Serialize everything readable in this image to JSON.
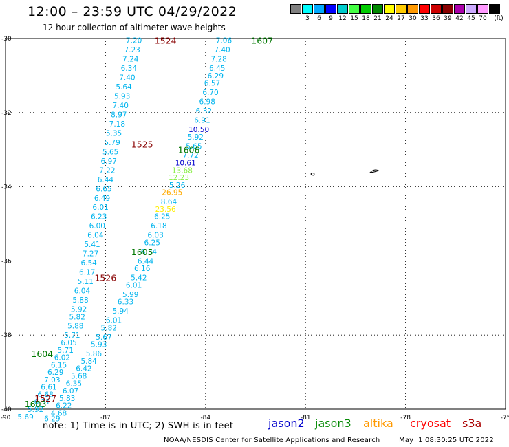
{
  "header": {
    "title": "12:00 – 23:59 UTC 04/29/2022",
    "subtitle": "12 hour collection of altimeter wave heights"
  },
  "colorbar": {
    "unit": "(ft)",
    "swatches": [
      {
        "color": "#808080",
        "label": ""
      },
      {
        "color": "#00ffff",
        "label": "3"
      },
      {
        "color": "#00aaff",
        "label": "6"
      },
      {
        "color": "#0000ff",
        "label": "9"
      },
      {
        "color": "#00cccc",
        "label": "12"
      },
      {
        "color": "#44ff44",
        "label": "15"
      },
      {
        "color": "#00cc00",
        "label": "18"
      },
      {
        "color": "#008800",
        "label": "21"
      },
      {
        "color": "#ffff00",
        "label": "24"
      },
      {
        "color": "#ffcc00",
        "label": "27"
      },
      {
        "color": "#ff9900",
        "label": "30"
      },
      {
        "color": "#ff0000",
        "label": "33"
      },
      {
        "color": "#cc0000",
        "label": "36"
      },
      {
        "color": "#880000",
        "label": "39"
      },
      {
        "color": "#aa00aa",
        "label": "42"
      },
      {
        "color": "#ccaaff",
        "label": "45"
      },
      {
        "color": "#ff99ff",
        "label": "70"
      },
      {
        "color": "#000000",
        "label": ""
      }
    ]
  },
  "map": {
    "lon_ticks": [
      "-90",
      "-87",
      "-84",
      "-81",
      "-78",
      "-75"
    ],
    "lat_ticks": [
      "-30",
      "-32",
      "-34",
      "-36",
      "-38",
      "-40"
    ],
    "lon_range": [
      -90,
      -75
    ],
    "lat_range": [
      -30,
      -40
    ],
    "colors": {
      "cyan": "#00b4ee",
      "blue": "#0000cc",
      "yellow": "#ffee00",
      "orange": "#ffaa00",
      "lime": "#88ee44",
      "green": "#007700",
      "darkred": "#880000"
    },
    "time_labels": [
      {
        "text": "1524",
        "lon": -85.2,
        "lat": -30.05,
        "color": "darkred"
      },
      {
        "text": "1607",
        "lon": -82.3,
        "lat": -30.05,
        "color": "green"
      },
      {
        "text": "1525",
        "lon": -85.9,
        "lat": -32.85,
        "color": "darkred"
      },
      {
        "text": "1606",
        "lon": -84.5,
        "lat": -33.0,
        "color": "green"
      },
      {
        "text": "1605",
        "lon": -85.9,
        "lat": -35.75,
        "color": "green"
      },
      {
        "text": "1526",
        "lon": -87.0,
        "lat": -36.45,
        "color": "darkred"
      },
      {
        "text": "1604",
        "lon": -88.9,
        "lat": -38.5,
        "color": "green"
      },
      {
        "text": "1527",
        "lon": -88.8,
        "lat": -39.7,
        "color": "darkred"
      },
      {
        "text": "1603",
        "lon": -89.1,
        "lat": -39.85,
        "color": "green"
      }
    ],
    "track_west": [
      {
        "text": "7.20",
        "lon": -86.15,
        "lat": -30.05
      },
      {
        "text": "7.23",
        "lon": -86.2,
        "lat": -30.3
      },
      {
        "text": "7.24",
        "lon": -86.25,
        "lat": -30.55
      },
      {
        "text": "6.34",
        "lon": -86.3,
        "lat": -30.8
      },
      {
        "text": "7.40",
        "lon": -86.35,
        "lat": -31.05
      },
      {
        "text": "5.64",
        "lon": -86.45,
        "lat": -31.3
      },
      {
        "text": "5.93",
        "lon": -86.5,
        "lat": -31.55
      },
      {
        "text": "7.40",
        "lon": -86.55,
        "lat": -31.8
      },
      {
        "text": "8.97",
        "lon": -86.6,
        "lat": -32.05
      },
      {
        "text": "7.18",
        "lon": -86.65,
        "lat": -32.3
      },
      {
        "text": "5.35",
        "lon": -86.75,
        "lat": -32.55
      },
      {
        "text": "5.79",
        "lon": -86.8,
        "lat": -32.8
      },
      {
        "text": "5.65",
        "lon": -86.85,
        "lat": -33.05
      },
      {
        "text": "6.97",
        "lon": -86.9,
        "lat": -33.3
      },
      {
        "text": "7.22",
        "lon": -86.95,
        "lat": -33.55
      },
      {
        "text": "6.44",
        "lon": -87.0,
        "lat": -33.8
      },
      {
        "text": "6.65",
        "lon": -87.05,
        "lat": -34.05
      },
      {
        "text": "6.49",
        "lon": -87.1,
        "lat": -34.3
      },
      {
        "text": "6.01",
        "lon": -87.15,
        "lat": -34.55
      },
      {
        "text": "6.23",
        "lon": -87.2,
        "lat": -34.8
      },
      {
        "text": "6.00",
        "lon": -87.25,
        "lat": -35.05
      },
      {
        "text": "6.04",
        "lon": -87.3,
        "lat": -35.3
      },
      {
        "text": "5.41",
        "lon": -87.4,
        "lat": -35.55
      },
      {
        "text": "7.27",
        "lon": -87.45,
        "lat": -35.8
      },
      {
        "text": "6.54",
        "lon": -87.5,
        "lat": -36.05
      },
      {
        "text": "6.17",
        "lon": -87.55,
        "lat": -36.3
      },
      {
        "text": "5.11",
        "lon": -87.6,
        "lat": -36.55
      },
      {
        "text": "6.04",
        "lon": -87.7,
        "lat": -36.8
      },
      {
        "text": "5.88",
        "lon": -87.75,
        "lat": -37.05
      },
      {
        "text": "5.92",
        "lon": -87.8,
        "lat": -37.3
      },
      {
        "text": "5.82",
        "lon": -87.85,
        "lat": -37.5
      },
      {
        "text": "5.88",
        "lon": -87.9,
        "lat": -37.75
      },
      {
        "text": "5.71",
        "lon": -88.0,
        "lat": -38.0
      },
      {
        "text": "6.05",
        "lon": -88.1,
        "lat": -38.2
      },
      {
        "text": "5.71",
        "lon": -88.2,
        "lat": -38.4
      },
      {
        "text": "6.02",
        "lon": -88.3,
        "lat": -38.6
      },
      {
        "text": "6.15",
        "lon": -88.4,
        "lat": -38.8
      },
      {
        "text": "6.29",
        "lon": -88.5,
        "lat": -39.0
      },
      {
        "text": "7.03",
        "lon": -88.6,
        "lat": -39.2
      },
      {
        "text": "6.61",
        "lon": -88.7,
        "lat": -39.4
      },
      {
        "text": "6.68",
        "lon": -88.8,
        "lat": -39.6
      },
      {
        "text": "6.31",
        "lon": -88.9,
        "lat": -39.8
      },
      {
        "text": "5.92",
        "lon": -89.1,
        "lat": -40.0
      },
      {
        "text": "5.69",
        "lon": -89.4,
        "lat": -40.2
      }
    ],
    "track_east": [
      {
        "text": "7.06",
        "lon": -83.45,
        "lat": -30.05,
        "color": "cyan"
      },
      {
        "text": "7.40",
        "lon": -83.5,
        "lat": -30.3,
        "color": "cyan"
      },
      {
        "text": "7.28",
        "lon": -83.6,
        "lat": -30.55,
        "color": "cyan"
      },
      {
        "text": "6.45",
        "lon": -83.65,
        "lat": -30.8,
        "color": "cyan"
      },
      {
        "text": "6.29",
        "lon": -83.7,
        "lat": -31.0,
        "color": "cyan"
      },
      {
        "text": "6.57",
        "lon": -83.8,
        "lat": -31.2,
        "color": "cyan"
      },
      {
        "text": "6.70",
        "lon": -83.85,
        "lat": -31.45,
        "color": "cyan"
      },
      {
        "text": "6.98",
        "lon": -83.95,
        "lat": -31.7,
        "color": "cyan"
      },
      {
        "text": "6.32",
        "lon": -84.05,
        "lat": -31.95,
        "color": "cyan"
      },
      {
        "text": "6.91",
        "lon": -84.1,
        "lat": -32.2,
        "color": "cyan"
      },
      {
        "text": "10.50",
        "lon": -84.2,
        "lat": -32.45,
        "color": "blue"
      },
      {
        "text": "5.92",
        "lon": -84.3,
        "lat": -32.65,
        "color": "cyan"
      },
      {
        "text": "5.65",
        "lon": -84.35,
        "lat": -32.9,
        "color": "cyan"
      },
      {
        "text": "7.72",
        "lon": -84.45,
        "lat": -33.15,
        "color": "cyan"
      },
      {
        "text": "10.61",
        "lon": -84.6,
        "lat": -33.35,
        "color": "blue"
      },
      {
        "text": "13.68",
        "lon": -84.7,
        "lat": -33.55,
        "color": "lime"
      },
      {
        "text": "12.23",
        "lon": -84.8,
        "lat": -33.75,
        "color": "lime"
      },
      {
        "text": "5.26",
        "lon": -84.85,
        "lat": -33.95,
        "color": "cyan"
      },
      {
        "text": "26.95",
        "lon": -85.0,
        "lat": -34.15,
        "color": "orange"
      },
      {
        "text": "8.64",
        "lon": -85.1,
        "lat": -34.4,
        "color": "cyan"
      },
      {
        "text": "23.56",
        "lon": -85.2,
        "lat": -34.6,
        "color": "yellow"
      },
      {
        "text": "6.25",
        "lon": -85.3,
        "lat": -34.8,
        "color": "cyan"
      },
      {
        "text": "6.18",
        "lon": -85.4,
        "lat": -35.05,
        "color": "cyan"
      },
      {
        "text": "6.03",
        "lon": -85.5,
        "lat": -35.3,
        "color": "cyan"
      },
      {
        "text": "6.25",
        "lon": -85.6,
        "lat": -35.5,
        "color": "cyan"
      },
      {
        "text": "6.34",
        "lon": -85.7,
        "lat": -35.75,
        "color": "cyan"
      },
      {
        "text": "6.44",
        "lon": -85.8,
        "lat": -36.0,
        "color": "cyan"
      },
      {
        "text": "6.16",
        "lon": -85.9,
        "lat": -36.2,
        "color": "cyan"
      },
      {
        "text": "5.42",
        "lon": -86.0,
        "lat": -36.45,
        "color": "cyan"
      },
      {
        "text": "6.01",
        "lon": -86.15,
        "lat": -36.65,
        "color": "cyan"
      },
      {
        "text": "5.99",
        "lon": -86.25,
        "lat": -36.9,
        "color": "cyan"
      },
      {
        "text": "6.33",
        "lon": -86.4,
        "lat": -37.1,
        "color": "cyan"
      },
      {
        "text": "5.94",
        "lon": -86.55,
        "lat": -37.35,
        "color": "cyan"
      },
      {
        "text": "6.01",
        "lon": -86.75,
        "lat": -37.6,
        "color": "cyan"
      },
      {
        "text": "5.82",
        "lon": -86.9,
        "lat": -37.8,
        "color": "cyan"
      },
      {
        "text": "5.67",
        "lon": -87.05,
        "lat": -38.05,
        "color": "cyan"
      },
      {
        "text": "5.93",
        "lon": -87.2,
        "lat": -38.25,
        "color": "cyan"
      },
      {
        "text": "5.86",
        "lon": -87.35,
        "lat": -38.5,
        "color": "cyan"
      },
      {
        "text": "5.84",
        "lon": -87.5,
        "lat": -38.7,
        "color": "cyan"
      },
      {
        "text": "6.42",
        "lon": -87.65,
        "lat": -38.9,
        "color": "cyan"
      },
      {
        "text": "5.68",
        "lon": -87.8,
        "lat": -39.1,
        "color": "cyan"
      },
      {
        "text": "6.35",
        "lon": -87.95,
        "lat": -39.3,
        "color": "cyan"
      },
      {
        "text": "6.07",
        "lon": -88.05,
        "lat": -39.5,
        "color": "cyan"
      },
      {
        "text": "5.83",
        "lon": -88.15,
        "lat": -39.7,
        "color": "cyan"
      },
      {
        "text": "6.22",
        "lon": -88.25,
        "lat": -39.9,
        "color": "cyan"
      },
      {
        "text": "4.68",
        "lon": -88.4,
        "lat": -40.1,
        "color": "cyan"
      },
      {
        "text": "6.29",
        "lon": -88.6,
        "lat": -40.25,
        "color": "cyan"
      }
    ]
  },
  "footer": {
    "note": "note: 1) Time is in UTC; 2) SWH is in feet",
    "satellites": [
      {
        "name": "jason2",
        "color": "#0000cc"
      },
      {
        "name": "jason3",
        "color": "#008800"
      },
      {
        "name": "altika",
        "color": "#ff9900"
      },
      {
        "name": "cryosat",
        "color": "#ff0000"
      },
      {
        "name": "s3a",
        "color": "#aa0000"
      }
    ],
    "credit": "NOAA/NESDIS Center for Satellite Applications and Research",
    "generated": "May  1 08:30:25 UTC 2022"
  }
}
